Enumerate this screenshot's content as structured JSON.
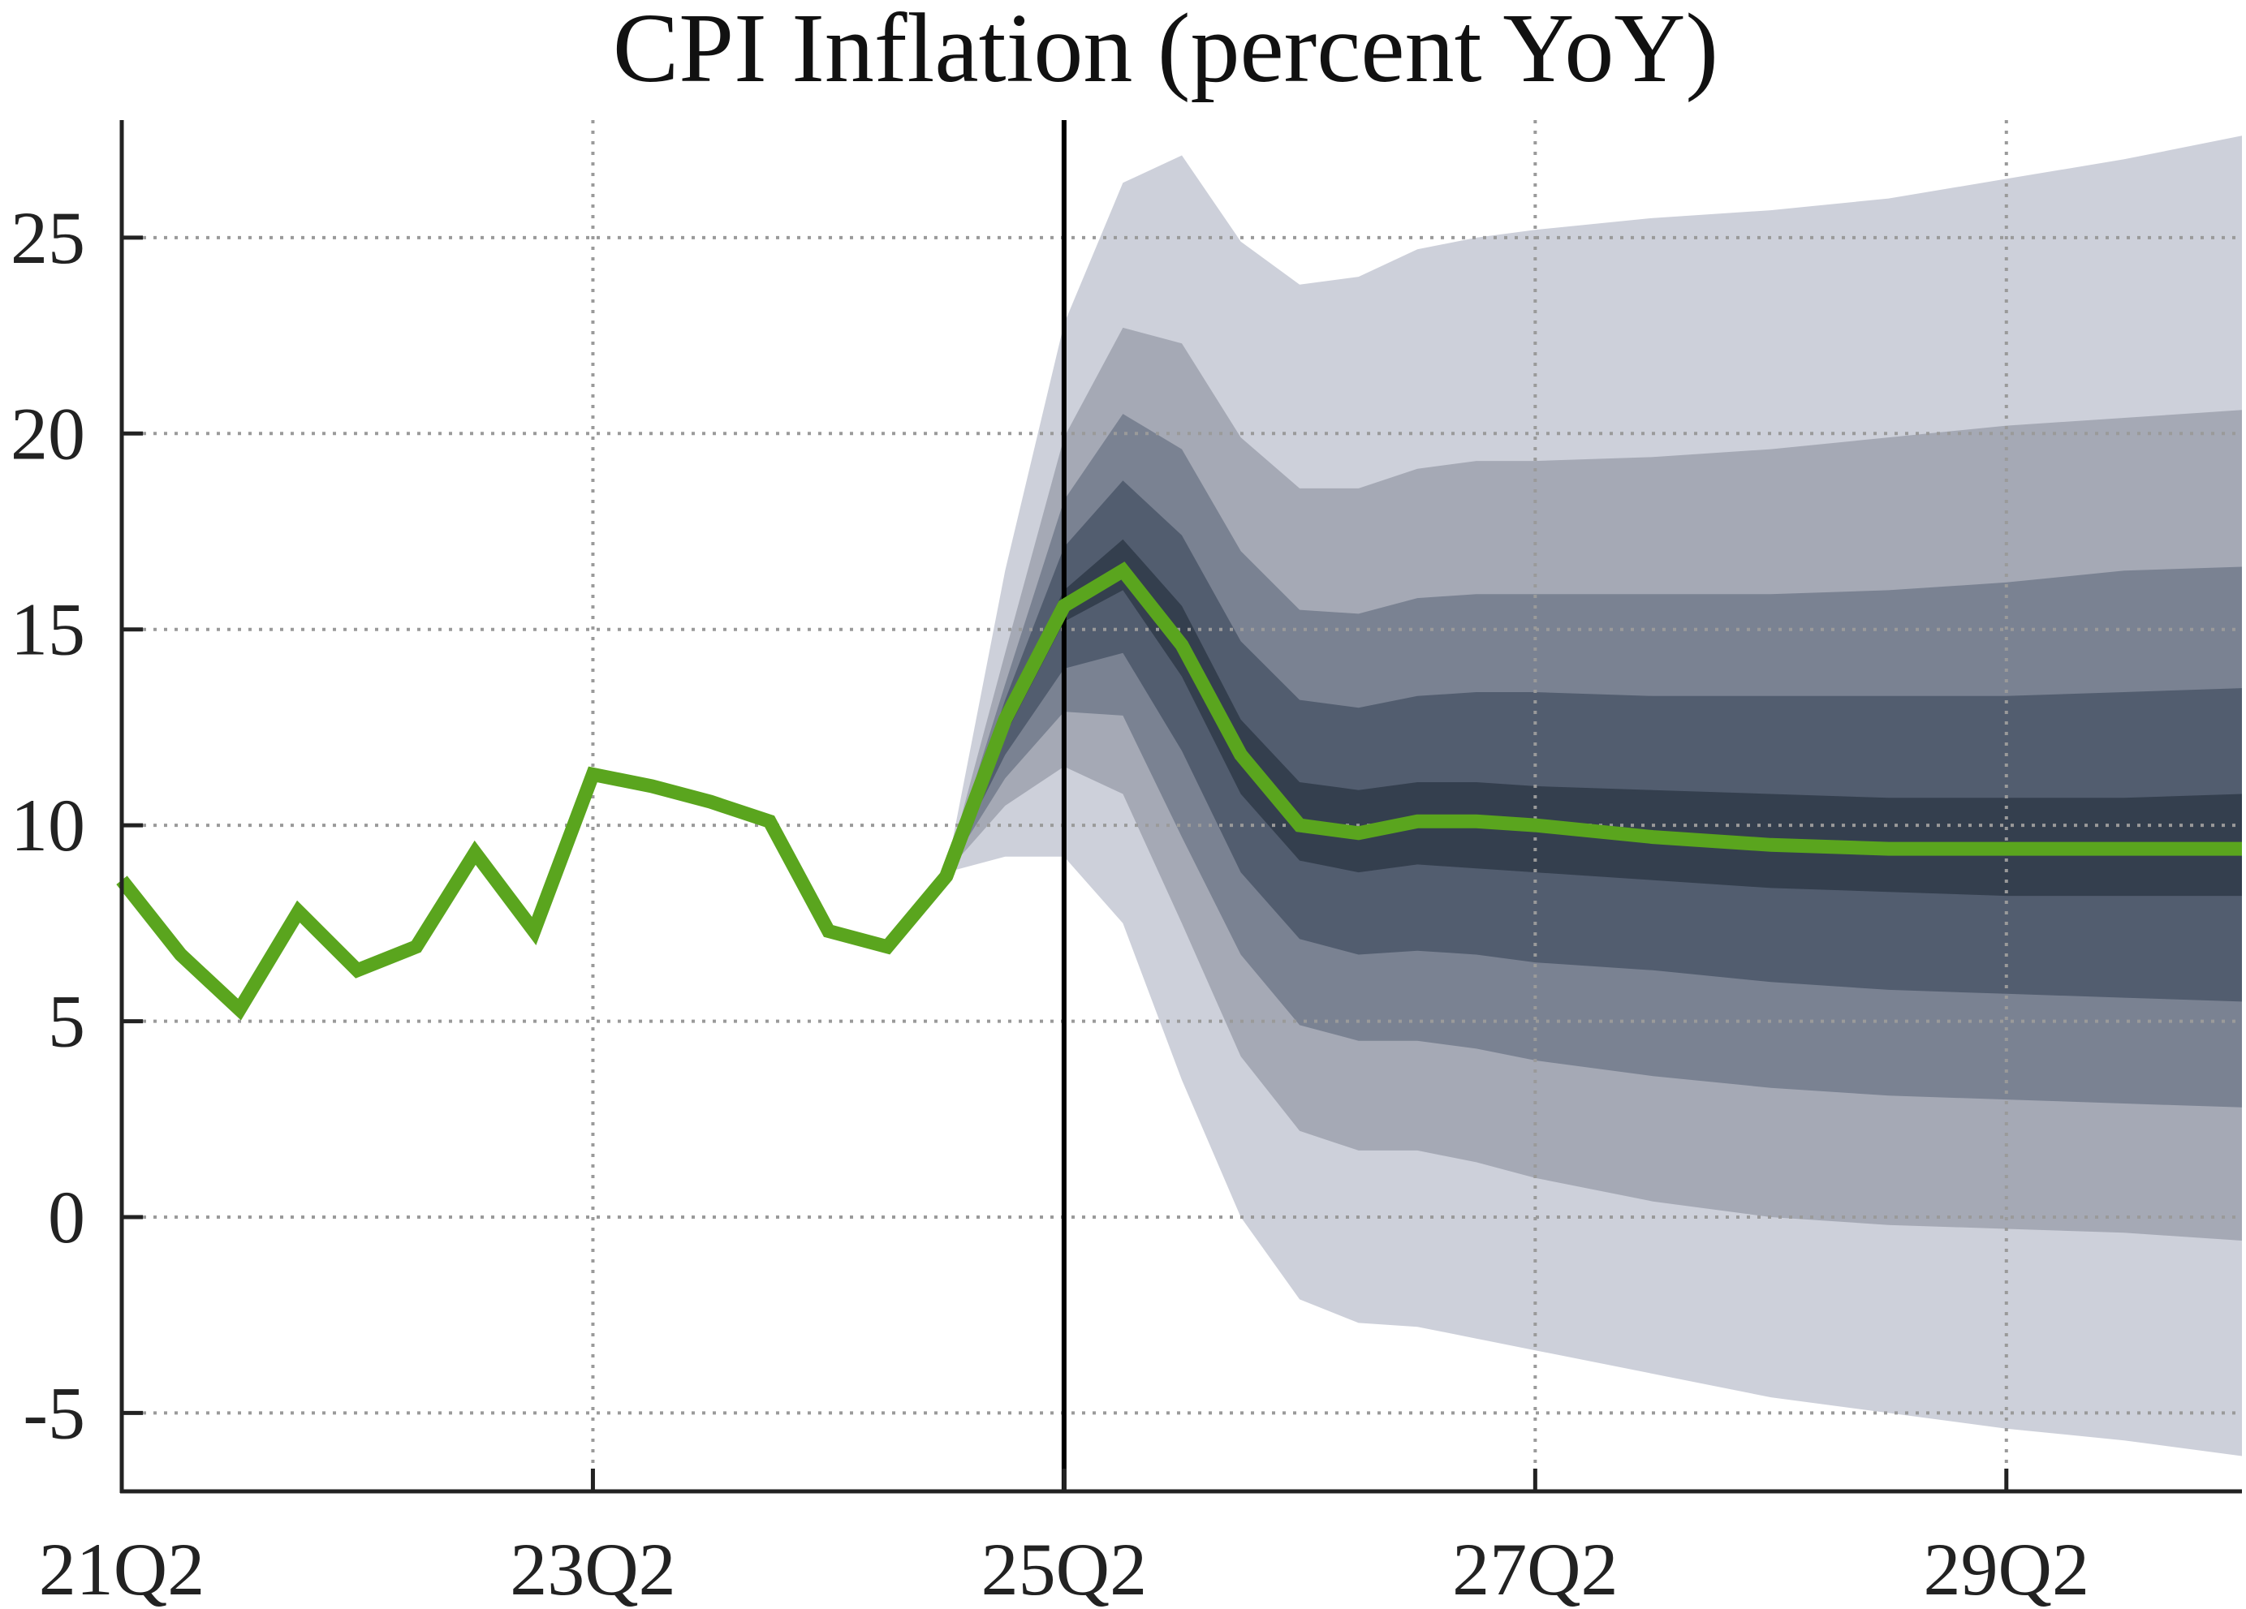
{
  "chart_data": {
    "type": "line",
    "title": "CPI Inflation (percent YoY)",
    "xlabel": "",
    "ylabel": "",
    "x_tick_labels": [
      "21Q2",
      "23Q2",
      "25Q2",
      "27Q2",
      "29Q2"
    ],
    "y_ticks": [
      25,
      20,
      15,
      10,
      5,
      0,
      -5
    ],
    "ylim": [
      -7,
      28
    ],
    "x_quarter_range": [
      0,
      36
    ],
    "forecast_start_quarter": 16,
    "grid": true,
    "colors": {
      "history_line": "#5aa51e",
      "forecast_line": "#5aa51e",
      "band_outer": "#cdd0da",
      "band_2": "#a5a9b5",
      "band_3": "#7a8292",
      "band_4": "#525d6f",
      "band_inner": "#343f4e",
      "grid": "#9a9a9a",
      "axis": "#222222",
      "vline": "#000000"
    },
    "history": {
      "quarters": [
        0,
        1,
        2,
        3,
        4,
        5,
        6,
        7,
        8,
        9,
        10,
        11,
        12,
        13,
        14,
        15,
        16
      ],
      "values": [
        8.6,
        6.7,
        5.3,
        7.8,
        6.3,
        6.9,
        9.3,
        7.3,
        11.3,
        11.0,
        10.6,
        10.1,
        7.3,
        6.9,
        8.7,
        12.7,
        15.6
      ]
    },
    "forecast": {
      "quarters": [
        14,
        15,
        16,
        17,
        18,
        19,
        20,
        21,
        22,
        23,
        24,
        26,
        28,
        30,
        32,
        34,
        36
      ],
      "median": [
        8.7,
        12.7,
        15.6,
        16.5,
        14.6,
        11.8,
        10.0,
        9.8,
        10.1,
        10.1,
        10.0,
        9.7,
        9.5,
        9.4,
        9.4,
        9.4,
        9.4
      ],
      "bands": [
        {
          "lower": [
            8.8,
            9.2,
            9.2,
            7.5,
            3.5,
            0.0,
            -2.1,
            -2.7,
            -2.8,
            -3.1,
            -3.4,
            -4.0,
            -4.6,
            -5.0,
            -5.4,
            -5.7,
            -6.1
          ],
          "upper": [
            8.8,
            16.5,
            22.8,
            26.4,
            27.1,
            24.9,
            23.8,
            24.0,
            24.7,
            25.0,
            25.2,
            25.5,
            25.7,
            26.0,
            26.5,
            27.0,
            27.6
          ]
        },
        {
          "lower": [
            8.8,
            10.5,
            11.5,
            10.8,
            7.5,
            4.1,
            2.2,
            1.7,
            1.7,
            1.4,
            1.0,
            0.4,
            0.0,
            -0.2,
            -0.3,
            -0.4,
            -0.6
          ]
        },
        {
          "lower": [
            8.8,
            11.2,
            12.9,
            12.8,
            9.7,
            6.7,
            4.9,
            4.5,
            4.5,
            4.3,
            4.0,
            3.6,
            3.3,
            3.1,
            3.0,
            2.9,
            2.8
          ],
          "upper": [
            8.8,
            14.4,
            19.9,
            22.7,
            22.3,
            19.9,
            18.6,
            18.6,
            19.1,
            19.3,
            19.3,
            19.4,
            19.6,
            19.9,
            20.2,
            20.4,
            20.6
          ]
        },
        {
          "lower": [
            8.8,
            11.8,
            14.0,
            14.4,
            11.9,
            8.8,
            7.1,
            6.7,
            6.8,
            6.7,
            6.5,
            6.3,
            6.0,
            5.8,
            5.7,
            5.6,
            5.5
          ],
          "upper": [
            8.8,
            13.6,
            18.3,
            20.5,
            19.6,
            17.0,
            15.5,
            15.4,
            15.8,
            15.9,
            15.9,
            15.9,
            15.9,
            16.0,
            16.2,
            16.5,
            16.6
          ]
        },
        {
          "lower": [
            8.8,
            12.3,
            15.2,
            16.0,
            13.8,
            10.8,
            9.1,
            8.8,
            9.0,
            8.9,
            8.8,
            8.6,
            8.4,
            8.3,
            8.2,
            8.2,
            8.2
          ],
          "upper": [
            8.8,
            13.2,
            17.1,
            18.8,
            17.4,
            14.7,
            13.2,
            13.0,
            13.3,
            13.4,
            13.4,
            13.3,
            13.3,
            13.3,
            13.3,
            13.4,
            13.5
          ]
        },
        {
          "lower": [
            8.8,
            12.5,
            15.0,
            16.0,
            13.9,
            10.8,
            9.2,
            9.0,
            9.1,
            9.0,
            8.9,
            8.7,
            8.5,
            8.4,
            8.3,
            8.3,
            8.3
          ],
          "upper": [
            8.8,
            13.0,
            16.0,
            17.3,
            15.6,
            12.7,
            11.1,
            10.9,
            11.1,
            11.1,
            11.0,
            10.9,
            10.8,
            10.7,
            10.7,
            10.7,
            10.8
          ]
        }
      ]
    }
  }
}
